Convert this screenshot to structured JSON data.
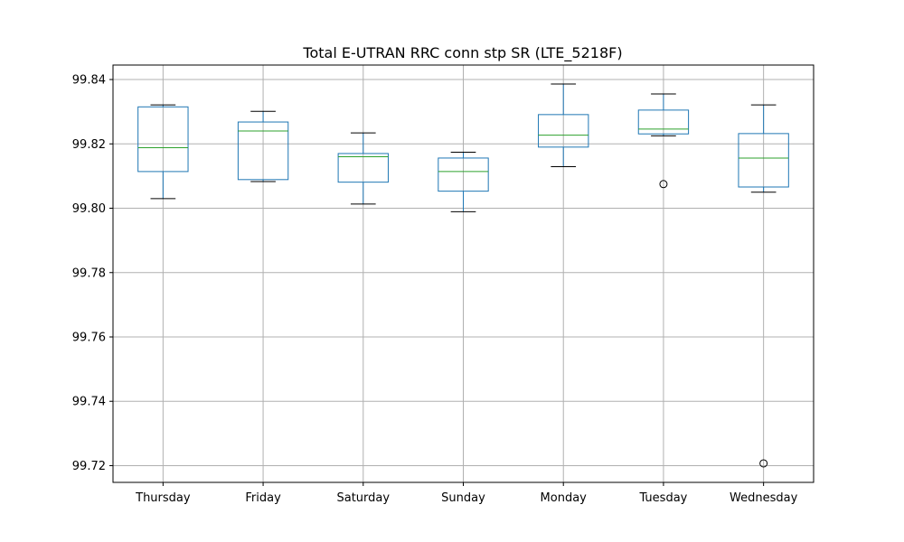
{
  "chart_data": {
    "type": "box",
    "title": "Total E-UTRAN RRC conn stp SR (LTE_5218F)",
    "xlabel": "",
    "ylabel": "",
    "ylim": [
      99.7148,
      99.8445
    ],
    "yticks": [
      99.72,
      99.74,
      99.76,
      99.78,
      99.8,
      99.82,
      99.84
    ],
    "ytick_labels": [
      "99.72",
      "99.74",
      "99.76",
      "99.78",
      "99.80",
      "99.82",
      "99.84"
    ],
    "grid": true,
    "legend": "none",
    "colors": {
      "box": "#1f77b4",
      "median": "#2ca02c",
      "whisker_cap": "#000000",
      "grid": "#b0b0b0",
      "axes": "#000000"
    },
    "categories": [
      "Thursday",
      "Friday",
      "Saturday",
      "Sunday",
      "Monday",
      "Tuesday",
      "Wednesday"
    ],
    "boxes": [
      {
        "category": "Thursday",
        "whisker_low": 99.803,
        "q1": 99.8114,
        "median": 99.8188,
        "q3": 99.8315,
        "whisker_high": 99.8321,
        "outliers": []
      },
      {
        "category": "Friday",
        "whisker_low": 99.8083,
        "q1": 99.8089,
        "median": 99.824,
        "q3": 99.8268,
        "whisker_high": 99.8301,
        "outliers": []
      },
      {
        "category": "Saturday",
        "whisker_low": 99.8013,
        "q1": 99.8081,
        "median": 99.816,
        "q3": 99.817,
        "whisker_high": 99.8234,
        "outliers": []
      },
      {
        "category": "Sunday",
        "whisker_low": 99.7989,
        "q1": 99.8053,
        "median": 99.8114,
        "q3": 99.8156,
        "whisker_high": 99.8174,
        "outliers": []
      },
      {
        "category": "Monday",
        "whisker_low": 99.8129,
        "q1": 99.819,
        "median": 99.8227,
        "q3": 99.8291,
        "whisker_high": 99.8386,
        "outliers": []
      },
      {
        "category": "Tuesday",
        "whisker_low": 99.8225,
        "q1": 99.8231,
        "median": 99.8246,
        "q3": 99.8305,
        "whisker_high": 99.8355,
        "outliers": [
          99.8075
        ]
      },
      {
        "category": "Wednesday",
        "whisker_low": 99.805,
        "q1": 99.8066,
        "median": 99.8156,
        "q3": 99.8232,
        "whisker_high": 99.8321,
        "outliers": [
          99.7207
        ]
      }
    ]
  }
}
